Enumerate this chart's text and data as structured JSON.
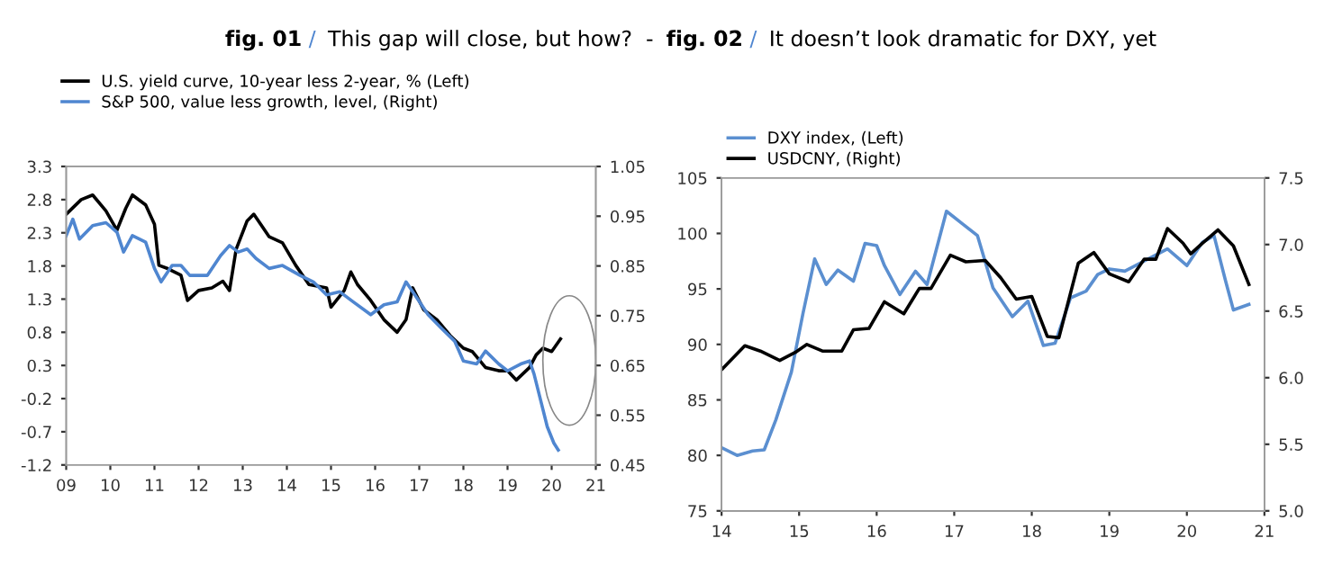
{
  "chart_data": [
    {
      "type": "line",
      "title": "fig. 01 / This gap will close, but how?  -",
      "xlim": [
        2009,
        2021
      ],
      "xticks": [
        {
          "value": 2009,
          "label": "09"
        },
        {
          "value": 2010,
          "label": "10"
        },
        {
          "value": 2011,
          "label": "11"
        },
        {
          "value": 2012,
          "label": "12"
        },
        {
          "value": 2013,
          "label": "13"
        },
        {
          "value": 2014,
          "label": "14"
        },
        {
          "value": 2015,
          "label": "15"
        },
        {
          "value": 2016,
          "label": "16"
        },
        {
          "value": 2017,
          "label": "17"
        },
        {
          "value": 2018,
          "label": "18"
        },
        {
          "value": 2019,
          "label": "19"
        },
        {
          "value": 2020,
          "label": "20"
        },
        {
          "value": 2021,
          "label": "21"
        }
      ],
      "ylim": [
        -1.2,
        3.3
      ],
      "yticks": [
        -1.2,
        -0.7,
        -0.2,
        0.3,
        0.8,
        1.3,
        1.8,
        2.3,
        2.8,
        3.3
      ],
      "y2lim": [
        0.45,
        1.05
      ],
      "y2ticks": [
        0.45,
        0.55,
        0.65,
        0.75,
        0.85,
        0.95,
        1.05
      ],
      "legend": "top left",
      "grid": false,
      "series": [
        {
          "name": "U.S. yield curve, 10-year less 2-year, % (Left)",
          "color": "#000000",
          "x": [
            2009.0,
            2009.34,
            2009.6,
            2009.9,
            2010.15,
            2010.35,
            2010.5,
            2010.8,
            2011.0,
            2011.1,
            2011.3,
            2011.6,
            2011.75,
            2012.0,
            2012.3,
            2012.55,
            2012.7,
            2012.85,
            2013.1,
            2013.25,
            2013.6,
            2013.9,
            2014.2,
            2014.5,
            2014.9,
            2015.0,
            2015.3,
            2015.45,
            2015.6,
            2015.9,
            2016.2,
            2016.5,
            2016.7,
            2016.85,
            2017.1,
            2017.4,
            2017.7,
            2018.0,
            2018.2,
            2018.5,
            2018.8,
            2019.0,
            2019.2,
            2019.5,
            2019.65,
            2019.8,
            2020.0,
            2020.2
          ],
          "values": [
            2.58,
            2.8,
            2.87,
            2.63,
            2.34,
            2.67,
            2.87,
            2.72,
            2.43,
            1.81,
            1.76,
            1.66,
            1.28,
            1.43,
            1.47,
            1.57,
            1.43,
            2.05,
            2.48,
            2.58,
            2.24,
            2.15,
            1.81,
            1.52,
            1.47,
            1.18,
            1.43,
            1.71,
            1.52,
            1.28,
            0.99,
            0.8,
            0.99,
            1.47,
            1.14,
            0.99,
            0.75,
            0.56,
            0.51,
            0.27,
            0.22,
            0.22,
            0.08,
            0.27,
            0.46,
            0.56,
            0.51,
            0.7
          ]
        },
        {
          "name": "S&P 500, value less growth, level, (Right)",
          "color": "#4f86d0",
          "axis": "y2",
          "x": [
            2009.0,
            2009.15,
            2009.3,
            2009.6,
            2009.9,
            2010.15,
            2010.3,
            2010.5,
            2010.8,
            2011.0,
            2011.15,
            2011.4,
            2011.6,
            2011.8,
            2012.2,
            2012.5,
            2012.7,
            2012.9,
            2013.1,
            2013.3,
            2013.6,
            2013.9,
            2014.3,
            2014.6,
            2014.9,
            2015.2,
            2015.5,
            2015.9,
            2016.2,
            2016.5,
            2016.7,
            2016.9,
            2017.2,
            2017.5,
            2017.8,
            2018.0,
            2018.3,
            2018.5,
            2018.8,
            2019.0,
            2019.3,
            2019.5,
            2019.6,
            2019.75,
            2019.9,
            2020.05,
            2020.15
          ],
          "values": [
            0.911,
            0.944,
            0.904,
            0.931,
            0.937,
            0.918,
            0.878,
            0.911,
            0.898,
            0.845,
            0.818,
            0.851,
            0.851,
            0.831,
            0.831,
            0.871,
            0.891,
            0.878,
            0.884,
            0.865,
            0.845,
            0.851,
            0.831,
            0.818,
            0.792,
            0.798,
            0.778,
            0.752,
            0.772,
            0.778,
            0.818,
            0.792,
            0.752,
            0.725,
            0.699,
            0.659,
            0.653,
            0.679,
            0.653,
            0.639,
            0.653,
            0.659,
            0.633,
            0.58,
            0.527,
            0.494,
            0.48
          ]
        }
      ]
    },
    {
      "type": "line",
      "title": "fig. 02 / It doesn’t look dramatic for DXY, yet",
      "xlim": [
        2014,
        2021
      ],
      "xticks": [
        {
          "value": 2014,
          "label": "14"
        },
        {
          "value": 2015,
          "label": "15"
        },
        {
          "value": 2016,
          "label": "16"
        },
        {
          "value": 2017,
          "label": "17"
        },
        {
          "value": 2018,
          "label": "18"
        },
        {
          "value": 2019,
          "label": "19"
        },
        {
          "value": 2020,
          "label": "20"
        },
        {
          "value": 2021,
          "label": "21"
        }
      ],
      "ylim": [
        75,
        105
      ],
      "yticks": [
        75,
        80,
        85,
        90,
        95,
        100,
        105
      ],
      "y2lim": [
        5.0,
        7.5
      ],
      "y2ticks": [
        {
          "value": 5.0,
          "label": "5.0"
        },
        5.5,
        {
          "value": 6.0,
          "label": "6.0"
        },
        6.5,
        {
          "value": 7.0,
          "label": "7.0"
        },
        7.5
      ],
      "legend": "top left",
      "grid": false,
      "series": [
        {
          "name": "DXY index, (Left)",
          "color": "#5b8fd0",
          "x": [
            2014.0,
            2014.2,
            2014.4,
            2014.55,
            2014.7,
            2014.9,
            2015.05,
            2015.2,
            2015.35,
            2015.5,
            2015.7,
            2015.85,
            2016.0,
            2016.1,
            2016.3,
            2016.5,
            2016.65,
            2016.9,
            2017.1,
            2017.3,
            2017.5,
            2017.75,
            2017.95,
            2018.15,
            2018.3,
            2018.5,
            2018.7,
            2018.85,
            2019.0,
            2019.2,
            2019.5,
            2019.75,
            2020.0,
            2020.2,
            2020.35,
            2020.5,
            2020.6,
            2020.8
          ],
          "values": [
            80.7,
            80.0,
            80.4,
            80.5,
            83.2,
            87.5,
            92.8,
            97.7,
            95.4,
            96.7,
            95.7,
            99.1,
            98.9,
            97.1,
            94.5,
            96.6,
            95.4,
            102.0,
            100.9,
            99.8,
            95.1,
            92.5,
            93.9,
            89.9,
            90.1,
            94.2,
            94.8,
            96.3,
            96.8,
            96.6,
            97.7,
            98.6,
            97.1,
            99.2,
            99.8,
            95.7,
            93.1,
            93.6
          ]
        },
        {
          "name": "USDCNY, (Right)",
          "color": "#000000",
          "axis": "y2",
          "x": [
            2014.0,
            2014.3,
            2014.5,
            2014.75,
            2014.95,
            2015.1,
            2015.3,
            2015.55,
            2015.7,
            2015.9,
            2016.1,
            2016.35,
            2016.55,
            2016.7,
            2016.95,
            2017.15,
            2017.4,
            2017.6,
            2017.8,
            2018.0,
            2018.2,
            2018.35,
            2018.6,
            2018.8,
            2019.0,
            2019.25,
            2019.45,
            2019.6,
            2019.75,
            2019.95,
            2020.05,
            2020.2,
            2020.4,
            2020.6,
            2020.8
          ],
          "values": [
            6.06,
            6.24,
            6.2,
            6.13,
            6.19,
            6.25,
            6.2,
            6.2,
            6.36,
            6.37,
            6.57,
            6.48,
            6.67,
            6.67,
            6.92,
            6.87,
            6.88,
            6.75,
            6.59,
            6.61,
            6.31,
            6.3,
            6.86,
            6.94,
            6.78,
            6.72,
            6.89,
            6.89,
            7.12,
            7.01,
            6.93,
            7.01,
            7.11,
            6.99,
            6.7
          ]
        }
      ]
    }
  ]
}
